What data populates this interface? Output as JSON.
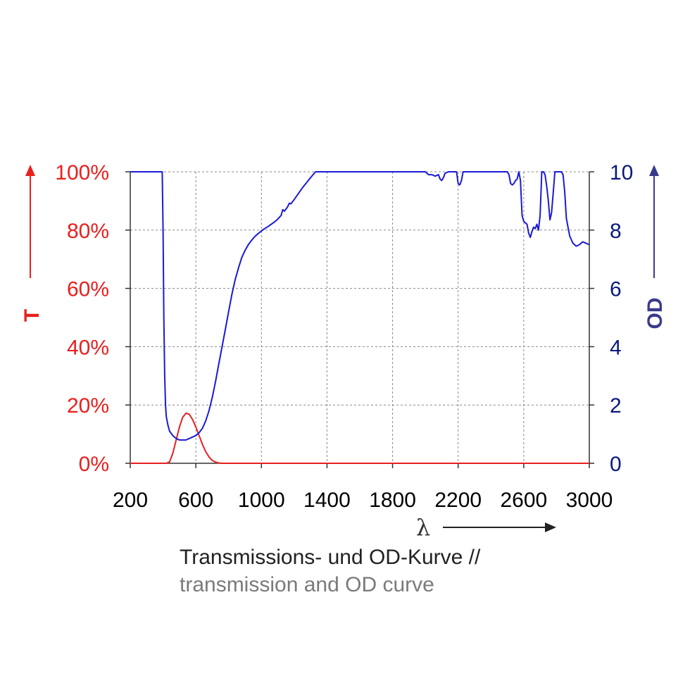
{
  "chart_data": {
    "type": "line",
    "xlabel": "λ",
    "ylabel_left": "T",
    "ylabel_right": "OD",
    "xlim": [
      200,
      3000
    ],
    "ylim_left": [
      0,
      100
    ],
    "ylim_right": [
      0,
      10
    ],
    "grid": true,
    "x_ticks": [
      "200",
      "600",
      "1000",
      "1400",
      "1800",
      "2200",
      "2600",
      "3000"
    ],
    "y_left_ticks": [
      "0%",
      "20%",
      "40%",
      "60%",
      "80%",
      "100%"
    ],
    "y_right_ticks": [
      "0",
      "2",
      "4",
      "6",
      "8",
      "10"
    ],
    "colors": {
      "T": "#e8201e",
      "OD": "#1a1ad6",
      "left_axis": "#e8201e",
      "right_axis": "#3a3a8c"
    },
    "series": [
      {
        "name": "T",
        "axis": "left",
        "x": [
          200,
          400,
          420,
          440,
          460,
          480,
          500,
          520,
          540,
          560,
          580,
          600,
          620,
          640,
          660,
          680,
          700,
          720,
          740,
          760,
          800,
          1000,
          1500,
          2000,
          2500,
          3000
        ],
        "y": [
          0,
          0,
          0,
          0.5,
          3.5,
          8,
          12.5,
          15.8,
          17.2,
          16.8,
          15,
          12.5,
          9.5,
          6.5,
          4,
          2.2,
          1,
          0.4,
          0.1,
          0,
          0,
          0,
          0,
          0,
          0,
          0
        ]
      },
      {
        "name": "OD",
        "axis": "right",
        "x": [
          200,
          395,
          400,
          405,
          410,
          415,
          420,
          430,
          440,
          460,
          480,
          500,
          520,
          540,
          560,
          580,
          600,
          620,
          640,
          660,
          680,
          700,
          720,
          740,
          760,
          780,
          800,
          820,
          840,
          860,
          880,
          900,
          920,
          940,
          960,
          980,
          1000,
          1020,
          1040,
          1060,
          1080,
          1100,
          1120,
          1130,
          1140,
          1150,
          1160,
          1170,
          1180,
          1200,
          1250,
          1300,
          1330,
          1340,
          1800,
          2000,
          2020,
          2040,
          2060,
          2080,
          2090,
          2100,
          2110,
          2120,
          2140,
          2190,
          2200,
          2210,
          2220,
          2230,
          2500,
          2510,
          2520,
          2530,
          2540,
          2550,
          2560,
          2570,
          2580,
          2590,
          2600,
          2610,
          2620,
          2630,
          2640,
          2650,
          2660,
          2670,
          2680,
          2690,
          2700,
          2710,
          2720,
          2730,
          2740,
          2750,
          2760,
          2770,
          2780,
          2790,
          2800,
          2810,
          2820,
          2830,
          2840,
          2850,
          2860,
          2880,
          2900,
          2920,
          2940,
          2960,
          2980,
          3000
        ],
        "y": [
          10,
          10,
          8,
          5,
          3,
          2,
          1.6,
          1.3,
          1.1,
          0.95,
          0.85,
          0.8,
          0.8,
          0.8,
          0.85,
          0.9,
          0.95,
          1.05,
          1.2,
          1.45,
          1.8,
          2.25,
          2.8,
          3.4,
          4.0,
          4.6,
          5.2,
          5.8,
          6.3,
          6.7,
          7.05,
          7.3,
          7.5,
          7.65,
          7.78,
          7.88,
          7.97,
          8.05,
          8.12,
          8.2,
          8.28,
          8.38,
          8.5,
          8.7,
          8.65,
          8.72,
          8.8,
          8.92,
          8.9,
          9.05,
          9.45,
          9.8,
          10,
          10,
          10,
          10,
          9.9,
          9.9,
          9.85,
          9.9,
          9.75,
          9.7,
          9.8,
          9.95,
          10,
          10,
          9.6,
          9.55,
          9.7,
          10,
          10,
          9.9,
          9.6,
          9.55,
          9.6,
          9.7,
          9.75,
          10,
          9.7,
          8.5,
          8.3,
          8.25,
          8.2,
          7.9,
          7.75,
          7.95,
          8.1,
          8.05,
          8.2,
          8.0,
          8.5,
          10,
          10,
          9.9,
          9.5,
          9.0,
          8.35,
          8.6,
          9.3,
          10,
          10,
          10,
          10,
          10,
          9.9,
          9.3,
          8.4,
          7.8,
          7.55,
          7.45,
          7.5,
          7.6,
          7.55,
          7.5
        ]
      }
    ]
  },
  "caption": {
    "line1": "Transmissions- und OD-Kurve //",
    "line2": "transmission and OD curve"
  }
}
